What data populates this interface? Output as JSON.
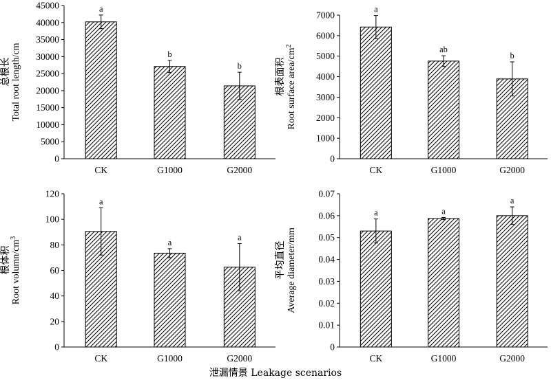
{
  "figure": {
    "xlabel": "泄漏情景 Leakage scenarios"
  },
  "chart_data": [
    {
      "type": "bar",
      "categories": [
        "CK",
        "G1000",
        "G2000"
      ],
      "values": [
        40200,
        27100,
        21400
      ],
      "errors": [
        2000,
        1800,
        4000
      ],
      "significance": [
        "a",
        "b",
        "b"
      ],
      "ylabel_cn": "总根长",
      "ylabel_en": "Total root length/cm",
      "ylim": [
        0,
        45000
      ],
      "yticks": [
        0,
        5000,
        10000,
        15000,
        20000,
        25000,
        30000,
        35000,
        40000,
        45000
      ],
      "ytick_labels": [
        "0",
        "5000",
        "10000",
        "15000",
        "20000",
        "25000",
        "30000",
        "35000",
        "40000",
        "45000"
      ]
    },
    {
      "type": "bar",
      "categories": [
        "CK",
        "G1000",
        "G2000"
      ],
      "values": [
        6420,
        4760,
        3890
      ],
      "errors": [
        560,
        260,
        830
      ],
      "significance": [
        "a",
        "ab",
        "b"
      ],
      "ylabel_cn": "根表面积",
      "ylabel_en": "Root surface area/cm",
      "ylabel_sup": "2",
      "ylim": [
        0,
        7000
      ],
      "yticks": [
        0,
        1000,
        2000,
        3000,
        4000,
        5000,
        6000,
        7000
      ],
      "ytick_labels": [
        "0",
        "1000",
        "2000",
        "3000",
        "4000",
        "5000",
        "6000",
        "7000"
      ]
    },
    {
      "type": "bar",
      "categories": [
        "CK",
        "G1000",
        "G2000"
      ],
      "values": [
        90.5,
        73.5,
        62.5
      ],
      "errors": [
        18.5,
        3.5,
        18.5
      ],
      "significance": [
        "a",
        "a",
        "a"
      ],
      "ylabel_cn": "根体积",
      "ylabel_en": "Root volumn/cm",
      "ylabel_sup": "3",
      "ylim": [
        0,
        120
      ],
      "yticks": [
        0,
        20,
        40,
        60,
        80,
        100,
        120
      ],
      "ytick_labels": [
        "0",
        "20",
        "40",
        "60",
        "80",
        "100",
        "120"
      ]
    },
    {
      "type": "bar",
      "categories": [
        "CK",
        "G1000",
        "G2000"
      ],
      "values": [
        0.053,
        0.0587,
        0.06
      ],
      "errors": [
        0.0055,
        0.0005,
        0.004
      ],
      "significance": [
        "a",
        "a",
        "a"
      ],
      "ylabel_cn": "平均直径",
      "ylabel_en": "Average diameter/mm",
      "ylim": [
        0,
        0.07
      ],
      "yticks": [
        0,
        0.01,
        0.02,
        0.03,
        0.04,
        0.05,
        0.06,
        0.07
      ],
      "ytick_labels": [
        "0",
        "0.01",
        "0.02",
        "0.03",
        "0.04",
        "0.05",
        "0.06",
        "0.07"
      ]
    }
  ]
}
